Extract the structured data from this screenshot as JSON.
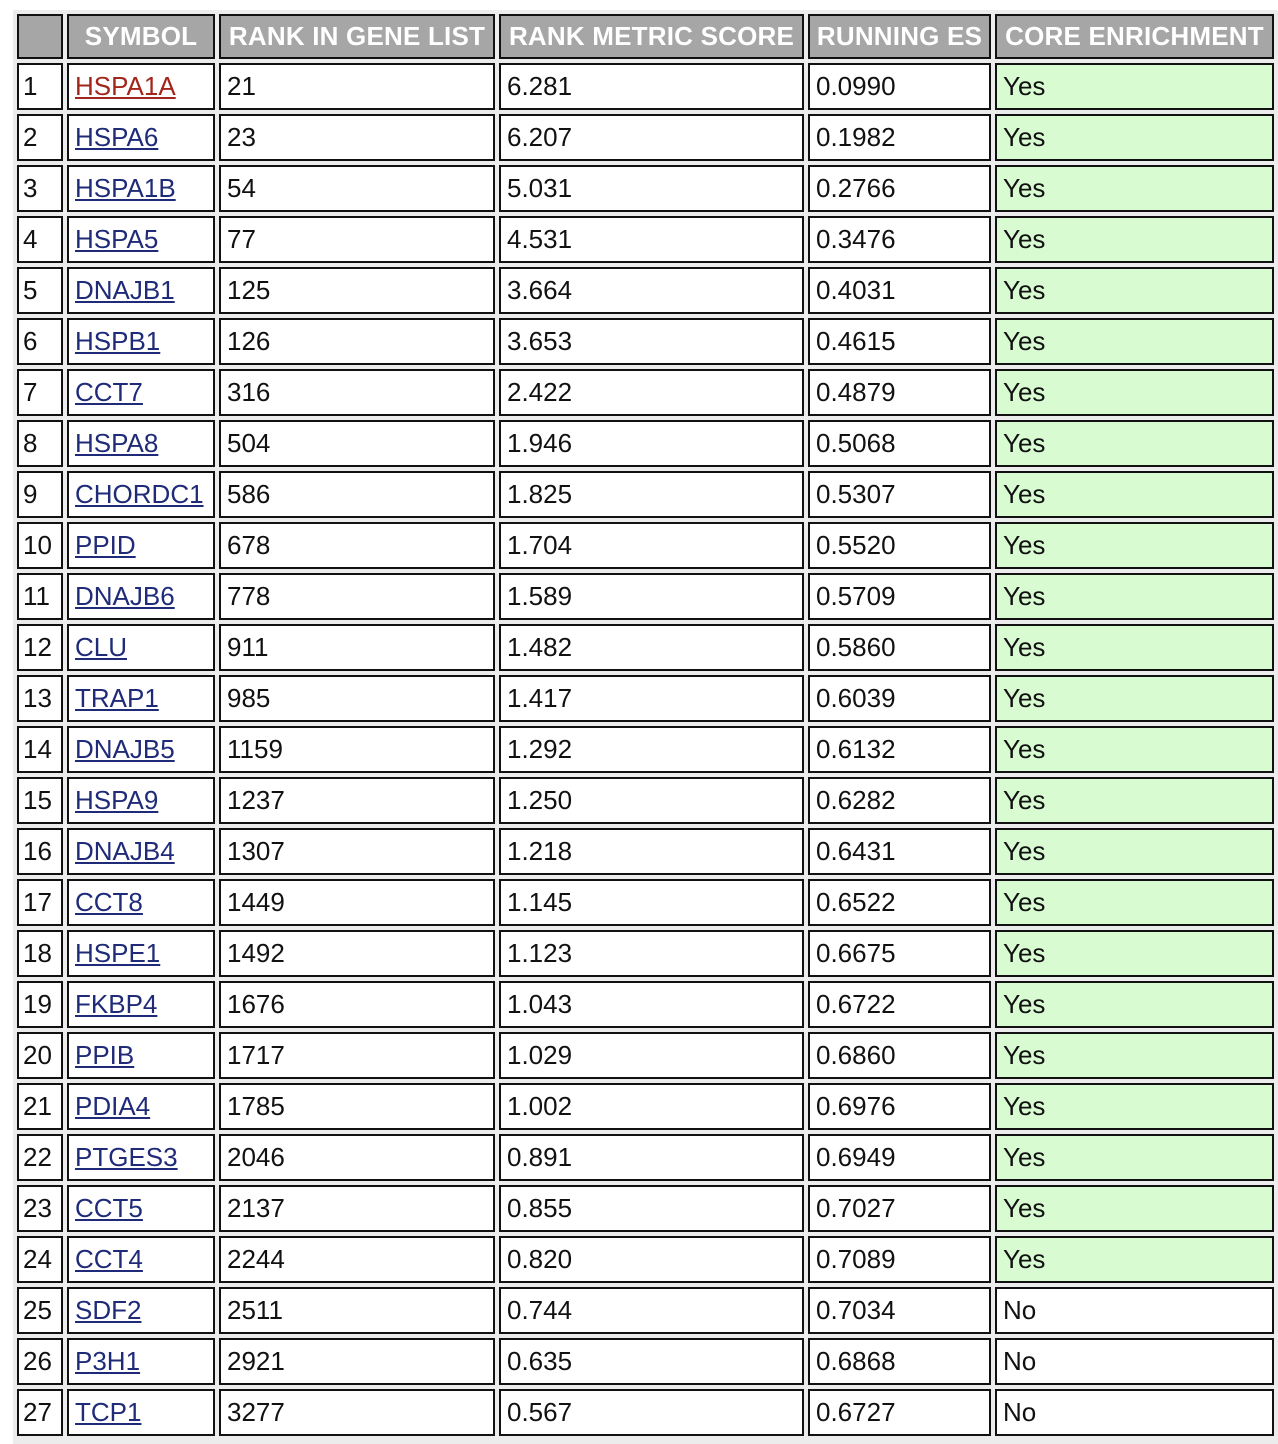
{
  "table": {
    "headers": {
      "index": "",
      "symbol": "SYMBOL",
      "rank_in_gene_list": "RANK IN GENE LIST",
      "rank_metric_score": "RANK METRIC SCORE",
      "running_es": "RUNNING ES",
      "core_enrichment": "CORE ENRICHMENT"
    },
    "colors": {
      "header_bg": "#a6a6a6",
      "header_text": "#ffffff",
      "link": "#1f2b78",
      "link_visited": "#a1261b",
      "core_yes_bg": "#d8fbd2"
    },
    "rows": [
      {
        "idx": "1",
        "symbol": "HSPA1A",
        "rank": "21",
        "score": "6.281",
        "es": "0.0990",
        "core": "Yes",
        "visited": true
      },
      {
        "idx": "2",
        "symbol": "HSPA6",
        "rank": "23",
        "score": "6.207",
        "es": "0.1982",
        "core": "Yes"
      },
      {
        "idx": "3",
        "symbol": "HSPA1B",
        "rank": "54",
        "score": "5.031",
        "es": "0.2766",
        "core": "Yes"
      },
      {
        "idx": "4",
        "symbol": "HSPA5",
        "rank": "77",
        "score": "4.531",
        "es": "0.3476",
        "core": "Yes"
      },
      {
        "idx": "5",
        "symbol": "DNAJB1",
        "rank": "125",
        "score": "3.664",
        "es": "0.4031",
        "core": "Yes"
      },
      {
        "idx": "6",
        "symbol": "HSPB1",
        "rank": "126",
        "score": "3.653",
        "es": "0.4615",
        "core": "Yes"
      },
      {
        "idx": "7",
        "symbol": "CCT7",
        "rank": "316",
        "score": "2.422",
        "es": "0.4879",
        "core": "Yes"
      },
      {
        "idx": "8",
        "symbol": "HSPA8",
        "rank": "504",
        "score": "1.946",
        "es": "0.5068",
        "core": "Yes"
      },
      {
        "idx": "9",
        "symbol": "CHORDC1",
        "rank": "586",
        "score": "1.825",
        "es": "0.5307",
        "core": "Yes"
      },
      {
        "idx": "10",
        "symbol": "PPID",
        "rank": "678",
        "score": "1.704",
        "es": "0.5520",
        "core": "Yes"
      },
      {
        "idx": "11",
        "symbol": "DNAJB6",
        "rank": "778",
        "score": "1.589",
        "es": "0.5709",
        "core": "Yes"
      },
      {
        "idx": "12",
        "symbol": "CLU",
        "rank": "911",
        "score": "1.482",
        "es": "0.5860",
        "core": "Yes"
      },
      {
        "idx": "13",
        "symbol": "TRAP1",
        "rank": "985",
        "score": "1.417",
        "es": "0.6039",
        "core": "Yes"
      },
      {
        "idx": "14",
        "symbol": "DNAJB5",
        "rank": "1159",
        "score": "1.292",
        "es": "0.6132",
        "core": "Yes"
      },
      {
        "idx": "15",
        "symbol": "HSPA9",
        "rank": "1237",
        "score": "1.250",
        "es": "0.6282",
        "core": "Yes"
      },
      {
        "idx": "16",
        "symbol": "DNAJB4",
        "rank": "1307",
        "score": "1.218",
        "es": "0.6431",
        "core": "Yes"
      },
      {
        "idx": "17",
        "symbol": "CCT8",
        "rank": "1449",
        "score": "1.145",
        "es": "0.6522",
        "core": "Yes"
      },
      {
        "idx": "18",
        "symbol": "HSPE1",
        "rank": "1492",
        "score": "1.123",
        "es": "0.6675",
        "core": "Yes"
      },
      {
        "idx": "19",
        "symbol": "FKBP4",
        "rank": "1676",
        "score": "1.043",
        "es": "0.6722",
        "core": "Yes"
      },
      {
        "idx": "20",
        "symbol": "PPIB",
        "rank": "1717",
        "score": "1.029",
        "es": "0.6860",
        "core": "Yes"
      },
      {
        "idx": "21",
        "symbol": "PDIA4",
        "rank": "1785",
        "score": "1.002",
        "es": "0.6976",
        "core": "Yes"
      },
      {
        "idx": "22",
        "symbol": "PTGES3",
        "rank": "2046",
        "score": "0.891",
        "es": "0.6949",
        "core": "Yes"
      },
      {
        "idx": "23",
        "symbol": "CCT5",
        "rank": "2137",
        "score": "0.855",
        "es": "0.7027",
        "core": "Yes"
      },
      {
        "idx": "24",
        "symbol": "CCT4",
        "rank": "2244",
        "score": "0.820",
        "es": "0.7089",
        "core": "Yes"
      },
      {
        "idx": "25",
        "symbol": "SDF2",
        "rank": "2511",
        "score": "0.744",
        "es": "0.7034",
        "core": "No"
      },
      {
        "idx": "26",
        "symbol": "P3H1",
        "rank": "2921",
        "score": "0.635",
        "es": "0.6868",
        "core": "No"
      },
      {
        "idx": "27",
        "symbol": "TCP1",
        "rank": "3277",
        "score": "0.567",
        "es": "0.6727",
        "core": "No"
      }
    ]
  }
}
